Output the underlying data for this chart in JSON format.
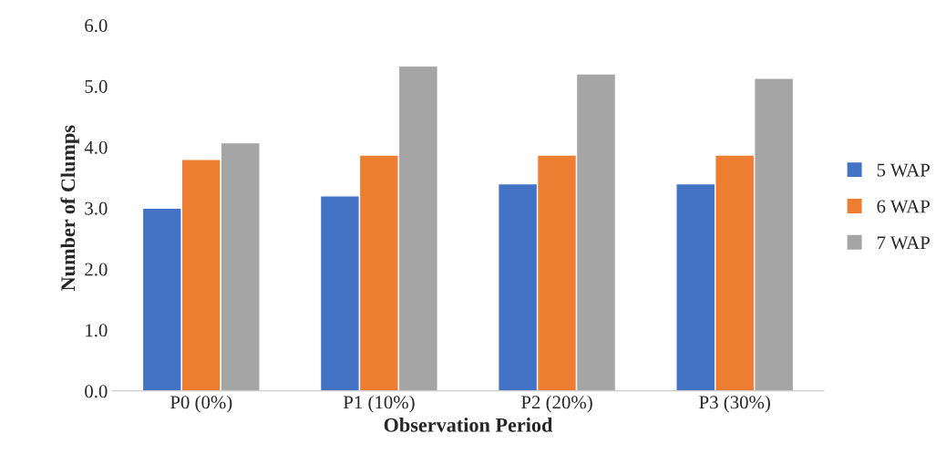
{
  "chart_data": {
    "type": "bar",
    "xlabel": "Observation Period",
    "ylabel": "Number of Clumps",
    "categories": [
      "P0 (0%)",
      "P1 (10%)",
      "P2 (20%)",
      "P3 (30%)"
    ],
    "series": [
      {
        "name": "5 WAP",
        "color": "#4472c4",
        "values": [
          3.0,
          3.2,
          3.4,
          3.4
        ]
      },
      {
        "name": "6 WAP",
        "color": "#ed7d31",
        "values": [
          3.8,
          3.87,
          3.87,
          3.87
        ]
      },
      {
        "name": "7 WAP",
        "color": "#a5a5a5",
        "values": [
          4.07,
          5.33,
          5.2,
          5.13
        ]
      }
    ],
    "ylim": [
      0,
      6
    ],
    "yticks": [
      {
        "value": 0,
        "label": "0.0"
      },
      {
        "value": 1,
        "label": "1.0"
      },
      {
        "value": 2,
        "label": "2.0"
      },
      {
        "value": 3,
        "label": "3.0"
      },
      {
        "value": 4,
        "label": "4.0"
      },
      {
        "value": 5,
        "label": "5.0"
      },
      {
        "value": 6,
        "label": "6.0"
      }
    ],
    "grid": false,
    "legend": "right"
  }
}
